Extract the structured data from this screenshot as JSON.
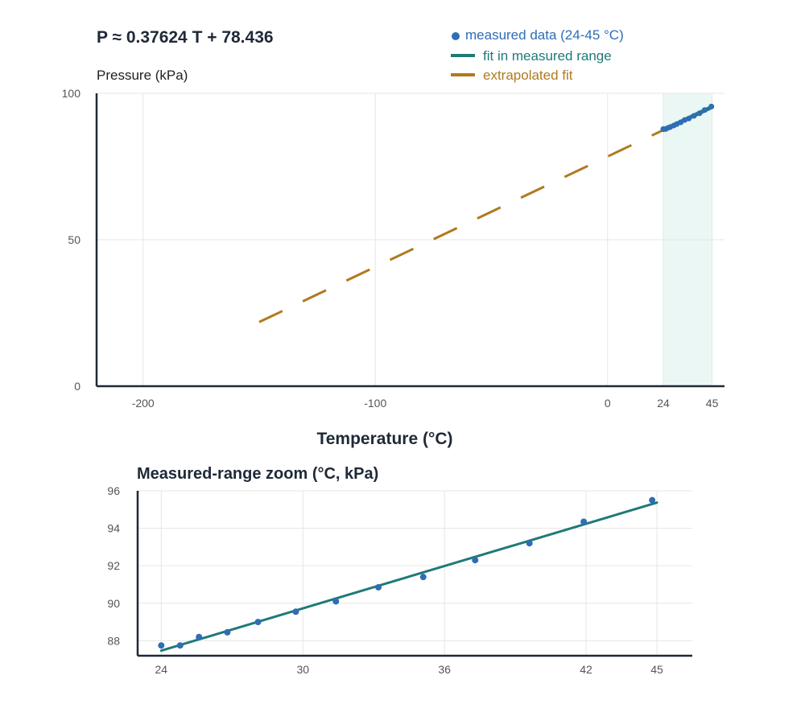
{
  "colors": {
    "measured": "#2f6db5",
    "fit": "#1f7a78",
    "extrapolated": "#b07a1f",
    "band": "#e3f3f1"
  },
  "chart_data": [
    {
      "type": "line",
      "title": "P ≈ 0.37624 T + 78.436",
      "ylabel": "Pressure (kPa)",
      "xlabel": "Temperature (°C)",
      "xlim": [
        -220,
        50
      ],
      "ylim": [
        0,
        100
      ],
      "x_ticks": [
        -200,
        -100,
        0,
        24,
        45
      ],
      "y_ticks": [
        0,
        50,
        100
      ],
      "grid": true,
      "legend_position": "top-right",
      "highlight_band": [
        24,
        45
      ],
      "fit": {
        "slope": 0.37624,
        "intercept": 78.436
      },
      "series": [
        {
          "name": "measured data (24-45 °C)",
          "kind": "scatter",
          "x": [
            24,
            25,
            26,
            27,
            28.5,
            29.8,
            31.5,
            33.2,
            35,
            37.2,
            39.6,
            41.8,
            44.7
          ],
          "y": [
            87.8,
            87.8,
            88.2,
            88.5,
            89.0,
            89.5,
            90.1,
            90.9,
            91.4,
            92.3,
            93.2,
            94.3,
            95.5
          ]
        },
        {
          "name": "fit in measured range",
          "kind": "line",
          "x": [
            24,
            45
          ],
          "y": [
            87.47,
            95.37
          ]
        },
        {
          "name": "extrapolated fit",
          "kind": "dashed",
          "x": [
            -150,
            24
          ],
          "y": [
            21.9,
            87.47
          ]
        }
      ]
    },
    {
      "type": "line",
      "title": "Measured-range zoom (°C, kPa)",
      "xlim": [
        23,
        46.5
      ],
      "ylim": [
        87.2,
        96
      ],
      "x_ticks": [
        24,
        30,
        36,
        42,
        45
      ],
      "y_ticks": [
        88,
        90,
        92,
        94,
        96
      ],
      "grid": true,
      "series": [
        {
          "kind": "scatter",
          "x": [
            24,
            24.8,
            25.6,
            26.8,
            28.1,
            29.7,
            31.4,
            33.2,
            35.1,
            37.3,
            39.6,
            41.9,
            44.8
          ],
          "y": [
            87.75,
            87.75,
            88.2,
            88.45,
            89.0,
            89.55,
            90.1,
            90.85,
            91.4,
            92.3,
            93.2,
            94.35,
            95.5
          ]
        },
        {
          "kind": "line",
          "x": [
            24,
            45
          ],
          "y": [
            87.47,
            95.37
          ]
        }
      ]
    }
  ]
}
